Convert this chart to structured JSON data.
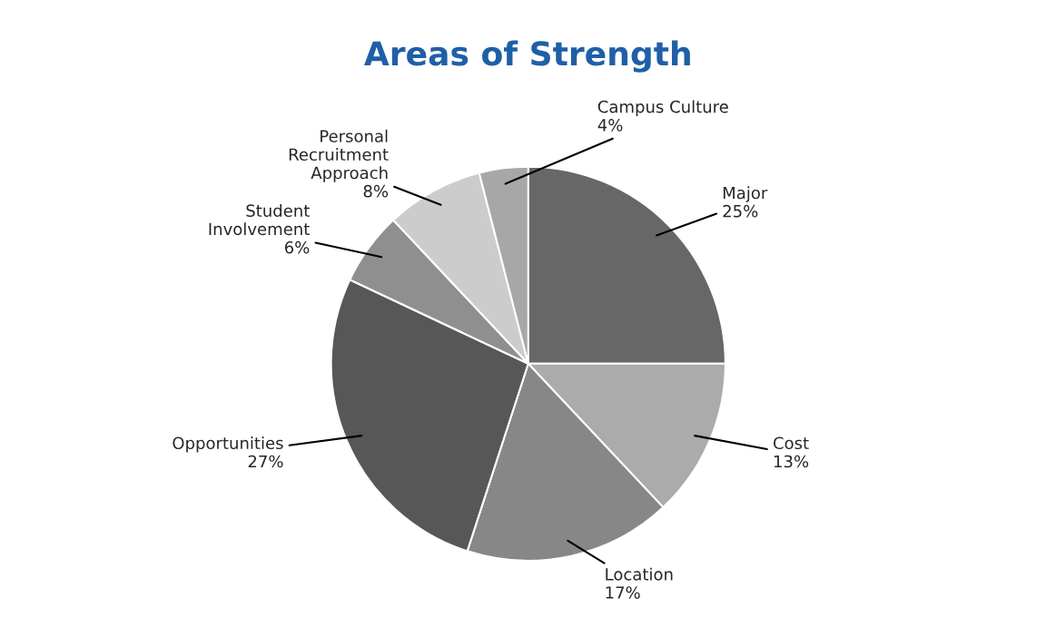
{
  "chart_data": {
    "type": "pie",
    "title": "Areas of Strength",
    "categories": [
      "Major",
      "Cost",
      "Location",
      "Opportunities",
      "Student Involvement",
      "Personal Recruitment Approach",
      "Campus Culture"
    ],
    "values": [
      25,
      13,
      17,
      27,
      6,
      8,
      4
    ],
    "value_labels": [
      "25%",
      "13%",
      "17%",
      "27%",
      "6%",
      "8%",
      "4%"
    ],
    "colors": [
      "#676767",
      "#ababab",
      "#878787",
      "#575757",
      "#8f8f8f",
      "#cccccc",
      "#a7a7a7"
    ],
    "legend": false
  }
}
